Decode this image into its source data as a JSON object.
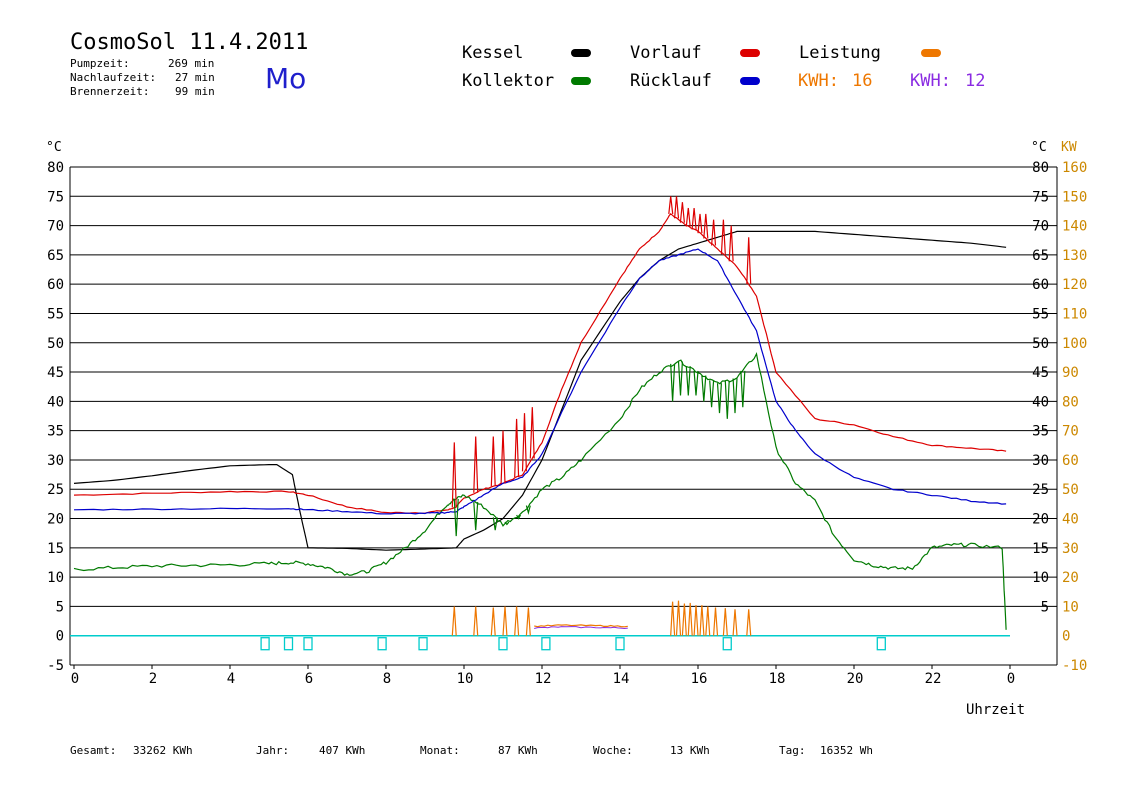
{
  "header": {
    "title": "CosmoSol 11.4.2011",
    "day": "Mo",
    "info": [
      {
        "label": "Pumpzeit:",
        "value": "269 min"
      },
      {
        "label": "Nachlaufzeit:",
        "value": "27 min"
      },
      {
        "label": "Brennerzeit:",
        "value": "99 min"
      }
    ]
  },
  "legend": {
    "kessel": "Kessel",
    "kollektor": "Kollektor",
    "vorlauf": "Vorlauf",
    "ruecklauf": "Rücklauf",
    "leistung": "Leistung",
    "kwh1_label": "KWH:",
    "kwh1_value": "16",
    "kwh2_label": "KWH:",
    "kwh2_value": "12"
  },
  "colors": {
    "kessel": "#000000",
    "vorlauf": "#dd0000",
    "kollektor": "#007a00",
    "ruecklauf": "#0000cc",
    "leistung": "#ee7700",
    "leistung2": "#8a2be2",
    "baseline": "#00cccc",
    "right_axis": "#cc8800"
  },
  "chart_data": {
    "type": "line",
    "xlabel": "Uhrzeit",
    "ylabel_left": "°C",
    "ylabel_right": "KW",
    "xlim": [
      0,
      24
    ],
    "ylim": [
      -5,
      80
    ],
    "ylim_right": [
      -10,
      160
    ],
    "grid": "horizontal",
    "xticks": [
      "0",
      "2",
      "4",
      "6",
      "8",
      "10",
      "12",
      "14",
      "16",
      "18",
      "20",
      "22",
      "0"
    ],
    "yticks_left": [
      "-5",
      "0",
      "5",
      "10",
      "15",
      "20",
      "25",
      "30",
      "35",
      "40",
      "45",
      "50",
      "55",
      "60",
      "65",
      "70",
      "75",
      "80"
    ],
    "yticks_right_c": [
      "5",
      "10",
      "15",
      "20",
      "25",
      "30",
      "35",
      "40",
      "45",
      "50",
      "55",
      "60",
      "65",
      "70",
      "75",
      "80"
    ],
    "yticks_right_kw": [
      "-10",
      "0",
      "10",
      "20",
      "30",
      "40",
      "50",
      "60",
      "70",
      "80",
      "90",
      "100",
      "110",
      "120",
      "130",
      "140",
      "150",
      "160"
    ],
    "series": [
      {
        "name": "Kessel",
        "key": "kessel",
        "x": [
          0,
          1,
          2,
          3,
          4,
          5,
          5.2,
          5.6,
          5.8,
          6.0,
          7.0,
          8.0,
          9.0,
          9.8,
          10.0,
          10.5,
          11.0,
          11.5,
          12.0,
          13.0,
          14.0,
          14.5,
          15.0,
          15.5,
          16.0,
          16.5,
          17.0,
          18.0,
          19.0,
          20.0,
          21.0,
          22.0,
          23.0,
          23.9
        ],
        "y": [
          26,
          26.5,
          27.3,
          28.2,
          29,
          29.2,
          29.2,
          27.5,
          21,
          15,
          14.9,
          14.6,
          14.8,
          15,
          16.5,
          18,
          20,
          24,
          30,
          47,
          57,
          61,
          64,
          66,
          67,
          68,
          69,
          69,
          69,
          68.5,
          68,
          67.5,
          67,
          66.3
        ]
      },
      {
        "name": "Vorlauf",
        "key": "vorlauf",
        "x": [
          0,
          2,
          4,
          5.5,
          6.0,
          7.0,
          8.0,
          9.0,
          9.6,
          9.8,
          10.0,
          10.5,
          11.0,
          11.5,
          12.0,
          12.5,
          13.0,
          14.0,
          14.5,
          15.0,
          15.3,
          15.7,
          16.0,
          16.5,
          17.0,
          17.5,
          18.0,
          19.0,
          20.0,
          21.0,
          22.0,
          23.0,
          23.9
        ],
        "y": [
          24,
          24.3,
          24.6,
          24.6,
          24,
          22,
          21,
          21,
          21.5,
          22,
          23.5,
          25,
          26,
          27.5,
          33,
          42,
          50,
          61,
          66,
          69,
          72,
          70,
          69,
          66,
          63,
          58,
          45,
          37,
          36,
          34,
          32.5,
          32,
          31.5
        ]
      },
      {
        "name": "Kollektor",
        "key": "kollektor",
        "x": [
          0,
          1,
          2,
          3,
          4,
          5,
          5.5,
          6.0,
          6.5,
          7.0,
          7.5,
          8.0,
          8.5,
          9.0,
          9.5,
          9.7,
          10.0,
          10.5,
          11.0,
          11.5,
          12.0,
          12.5,
          13.0,
          14.0,
          14.5,
          15.0,
          15.5,
          16.0,
          16.5,
          17.0,
          17.5,
          18.0,
          18.5,
          19.0,
          19.5,
          20.0,
          20.5,
          21.0,
          21.5,
          22.0,
          22.5,
          23.0,
          23.8,
          23.9
        ],
        "y": [
          11.3,
          11.6,
          11.9,
          12.0,
          12.1,
          12.3,
          12.5,
          12.3,
          11.6,
          10.5,
          10.9,
          12.5,
          15,
          18,
          22,
          23,
          24,
          22,
          19,
          21,
          25,
          27,
          30,
          37,
          42,
          45,
          47,
          45,
          43,
          44,
          48,
          32,
          26,
          23,
          17,
          13,
          12,
          11.5,
          11.5,
          15,
          15.5,
          15.5,
          15,
          1
        ]
      },
      {
        "name": "Rücklauf",
        "key": "ruecklauf",
        "x": [
          0,
          2,
          4,
          5.5,
          6.0,
          7.0,
          8.0,
          9.0,
          9.5,
          9.8,
          10.0,
          10.5,
          11.0,
          11.5,
          12.0,
          13.0,
          14.0,
          14.5,
          15.0,
          15.5,
          16.0,
          16.5,
          17.0,
          17.5,
          18.0,
          18.5,
          19.0,
          20.0,
          21.0,
          22.0,
          23.0,
          23.9
        ],
        "y": [
          21.5,
          21.6,
          21.7,
          21.7,
          21.5,
          21.2,
          20.8,
          20.9,
          21,
          21.2,
          22,
          24,
          26,
          27,
          31,
          45,
          56,
          61,
          64,
          65,
          66,
          64,
          58,
          52,
          40,
          35,
          31,
          27,
          25,
          24,
          23,
          22.5
        ]
      }
    ],
    "spikes": [
      {
        "series": "vorlauf",
        "x": [
          9.75,
          10.3,
          10.75,
          11.0,
          11.35,
          11.55,
          11.75,
          15.3,
          15.45,
          15.6,
          15.75,
          15.9,
          16.05,
          16.2,
          16.4,
          16.65,
          16.85,
          17.3
        ],
        "y": [
          33,
          34,
          34,
          35,
          37,
          38,
          39,
          75,
          75,
          74,
          73,
          73,
          72,
          72,
          71,
          71,
          70,
          68
        ]
      },
      {
        "series": "kollektor",
        "x": [
          9.8,
          10.3,
          10.8,
          11.1,
          11.4,
          11.65,
          15.35,
          15.55,
          15.75,
          15.95,
          16.15,
          16.35,
          16.55,
          16.75,
          16.95,
          17.15
        ],
        "y": [
          17,
          18,
          18,
          19,
          20,
          21,
          40,
          41,
          41,
          41,
          40,
          39,
          38,
          37,
          38,
          39
        ]
      },
      {
        "series": "leistung",
        "x": [
          9.75,
          10.3,
          10.75,
          11.05,
          11.35,
          11.65,
          15.35,
          15.5,
          15.65,
          15.8,
          15.95,
          16.1,
          16.25,
          16.45,
          16.7,
          16.95,
          17.3
        ],
        "y": [
          5,
          5,
          4.8,
          5,
          5,
          4.8,
          5.8,
          6,
          5.5,
          5.6,
          5.2,
          5.2,
          5,
          4.8,
          4.7,
          4.5,
          4.5
        ]
      }
    ],
    "leistung_base": {
      "x": [
        11.8,
        12.5,
        13.5,
        14.2
      ],
      "y": [
        1.6,
        1.8,
        1.7,
        1.6
      ]
    },
    "pump_markers_x": [
      4.9,
      5.5,
      6.0,
      7.9,
      8.95,
      11.0,
      12.1,
      14.0,
      16.75,
      20.7
    ]
  },
  "footer": [
    {
      "label": "Gesamt:",
      "value": "33262 KWh"
    },
    {
      "label": "Jahr:",
      "value": "407 KWh"
    },
    {
      "label": "Monat:",
      "value": "87 KWh"
    },
    {
      "label": "Woche:",
      "value": "13 KWh"
    },
    {
      "label": "Tag:",
      "value": "16352 Wh"
    }
  ]
}
